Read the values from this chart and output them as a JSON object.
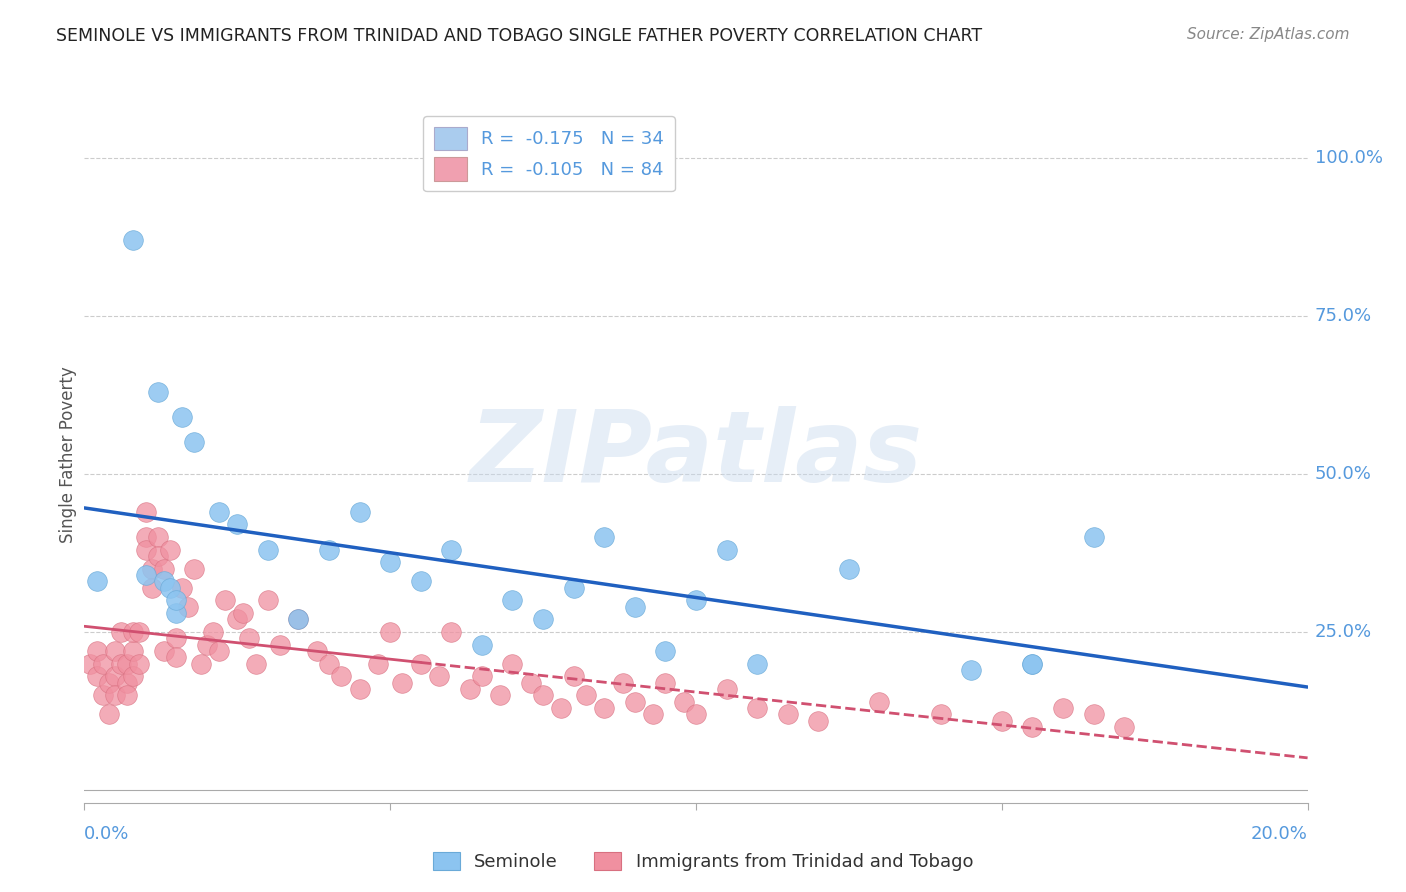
{
  "title": "SEMINOLE VS IMMIGRANTS FROM TRINIDAD AND TOBAGO SINGLE FATHER POVERTY CORRELATION CHART",
  "source": "Source: ZipAtlas.com",
  "ylabel": "Single Father Poverty",
  "xlim": [
    0.0,
    0.2
  ],
  "ylim": [
    -0.02,
    1.08
  ],
  "legend_entry1": "R =  -0.175   N = 34",
  "legend_entry2": "R =  -0.105   N = 84",
  "watermark": "ZIPatlas",
  "seminole_color": "#8cc4f0",
  "seminole_edge": "#6aaad8",
  "immigrants_color": "#f090a0",
  "immigrants_edge": "#d87080",
  "blue_line_color": "#2060c0",
  "pink_line_color": "#d05070",
  "grid_color": "#cccccc",
  "axis_color": "#5599dd",
  "legend_box_color1": "#aaccee",
  "legend_box_color2": "#f0a0b0",
  "seminole_x": [
    0.008,
    0.012,
    0.016,
    0.018,
    0.022,
    0.025,
    0.03,
    0.04,
    0.05,
    0.06,
    0.07,
    0.08,
    0.09,
    0.1,
    0.11,
    0.125,
    0.145,
    0.155,
    0.002,
    0.01,
    0.013,
    0.014,
    0.015,
    0.015,
    0.035,
    0.045,
    0.055,
    0.065,
    0.075,
    0.085,
    0.095,
    0.105,
    0.155,
    0.165
  ],
  "seminole_y": [
    0.87,
    0.63,
    0.59,
    0.55,
    0.44,
    0.42,
    0.38,
    0.38,
    0.36,
    0.38,
    0.3,
    0.32,
    0.29,
    0.3,
    0.2,
    0.35,
    0.19,
    0.2,
    0.33,
    0.34,
    0.33,
    0.32,
    0.28,
    0.3,
    0.27,
    0.44,
    0.33,
    0.23,
    0.27,
    0.4,
    0.22,
    0.38,
    0.2,
    0.4
  ],
  "immigrants_x": [
    0.001,
    0.002,
    0.002,
    0.003,
    0.003,
    0.004,
    0.004,
    0.005,
    0.005,
    0.005,
    0.006,
    0.006,
    0.007,
    0.007,
    0.007,
    0.008,
    0.008,
    0.008,
    0.009,
    0.009,
    0.01,
    0.01,
    0.01,
    0.011,
    0.011,
    0.012,
    0.012,
    0.013,
    0.013,
    0.014,
    0.015,
    0.015,
    0.016,
    0.017,
    0.018,
    0.019,
    0.02,
    0.021,
    0.022,
    0.023,
    0.025,
    0.026,
    0.027,
    0.028,
    0.03,
    0.032,
    0.035,
    0.038,
    0.04,
    0.042,
    0.045,
    0.048,
    0.05,
    0.052,
    0.055,
    0.058,
    0.06,
    0.063,
    0.065,
    0.068,
    0.07,
    0.073,
    0.075,
    0.078,
    0.08,
    0.082,
    0.085,
    0.088,
    0.09,
    0.093,
    0.095,
    0.098,
    0.1,
    0.105,
    0.11,
    0.115,
    0.12,
    0.13,
    0.14,
    0.15,
    0.155,
    0.16,
    0.165,
    0.17
  ],
  "immigrants_y": [
    0.2,
    0.18,
    0.22,
    0.15,
    0.2,
    0.12,
    0.17,
    0.18,
    0.15,
    0.22,
    0.2,
    0.25,
    0.17,
    0.2,
    0.15,
    0.22,
    0.18,
    0.25,
    0.2,
    0.25,
    0.44,
    0.4,
    0.38,
    0.35,
    0.32,
    0.4,
    0.37,
    0.35,
    0.22,
    0.38,
    0.24,
    0.21,
    0.32,
    0.29,
    0.35,
    0.2,
    0.23,
    0.25,
    0.22,
    0.3,
    0.27,
    0.28,
    0.24,
    0.2,
    0.3,
    0.23,
    0.27,
    0.22,
    0.2,
    0.18,
    0.16,
    0.2,
    0.25,
    0.17,
    0.2,
    0.18,
    0.25,
    0.16,
    0.18,
    0.15,
    0.2,
    0.17,
    0.15,
    0.13,
    0.18,
    0.15,
    0.13,
    0.17,
    0.14,
    0.12,
    0.17,
    0.14,
    0.12,
    0.16,
    0.13,
    0.12,
    0.11,
    0.14,
    0.12,
    0.11,
    0.1,
    0.13,
    0.12,
    0.1
  ]
}
